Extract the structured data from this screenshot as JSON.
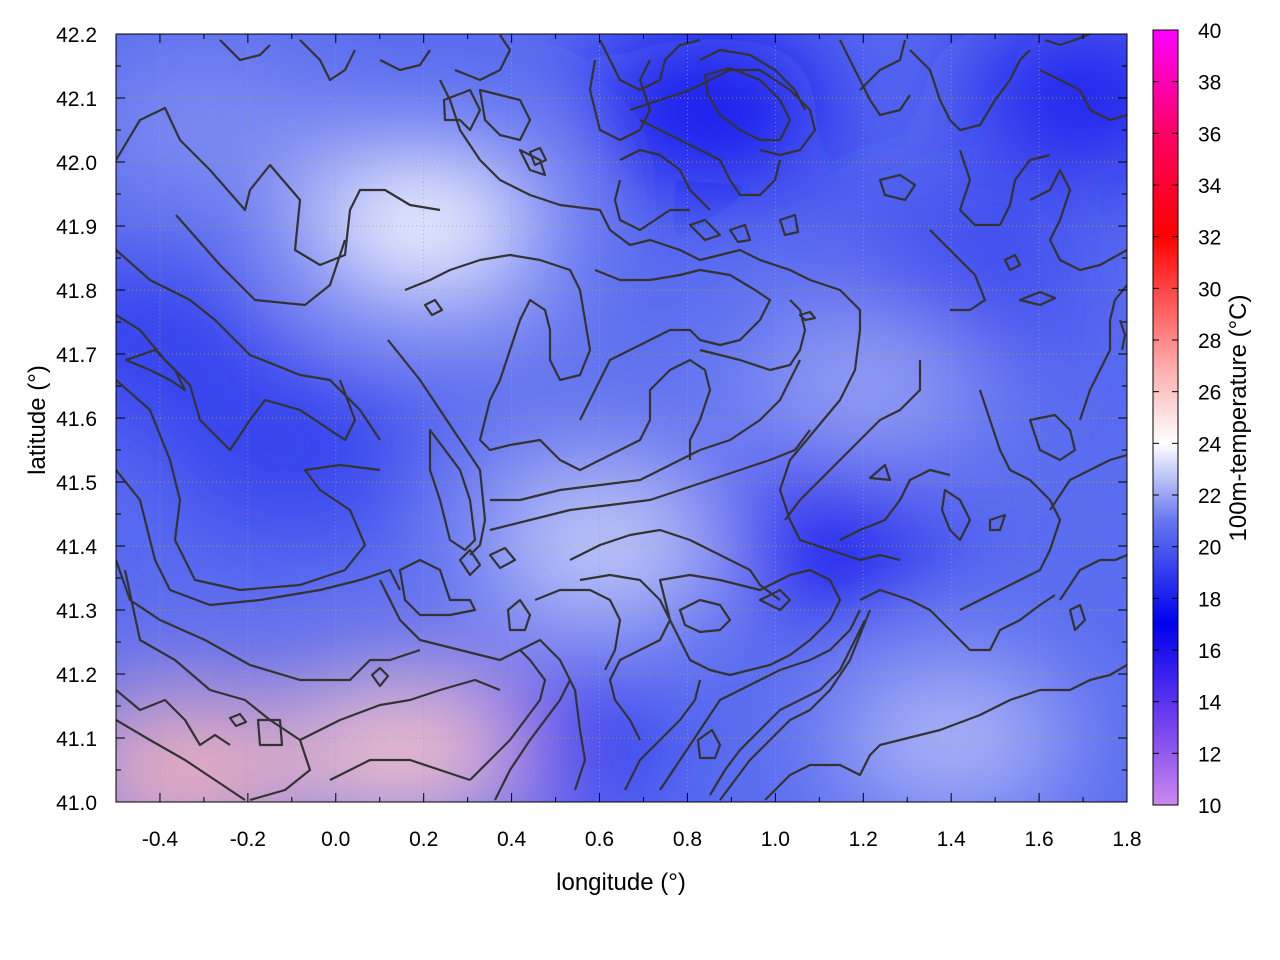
{
  "chart_data": {
    "type": "heatmap",
    "title": "",
    "xlabel": "longitude (°)",
    "ylabel": "latitude (°)",
    "colorbar_label": "100m-temperature (°C)",
    "xlim": [
      -0.5,
      1.8
    ],
    "ylim": [
      41.0,
      42.2
    ],
    "x_ticks": [
      -0.4,
      -0.2,
      0.0,
      0.2,
      0.4,
      0.6,
      0.8,
      1.0,
      1.2,
      1.4,
      1.6,
      1.8
    ],
    "x_tick_labels": [
      "-0.4",
      "-0.2",
      "0.0",
      "0.2",
      "0.4",
      "0.6",
      "0.8",
      "1.0",
      "1.2",
      "1.4",
      "1.6",
      "1.8"
    ],
    "y_ticks": [
      41.0,
      41.1,
      41.2,
      41.3,
      41.4,
      41.5,
      41.6,
      41.7,
      41.8,
      41.9,
      42.0,
      42.1,
      42.2
    ],
    "y_tick_labels": [
      "41.0",
      "41.1",
      "41.2",
      "41.3",
      "41.4",
      "41.5",
      "41.6",
      "41.7",
      "41.8",
      "41.9",
      "42.0",
      "42.1",
      "42.2"
    ],
    "colorbar_range": [
      10,
      40
    ],
    "colorbar_ticks": [
      10,
      12,
      14,
      16,
      18,
      20,
      22,
      24,
      26,
      28,
      30,
      32,
      34,
      36,
      38,
      40
    ],
    "colorbar_tick_labels": [
      "10",
      "12",
      "14",
      "16",
      "18",
      "20",
      "22",
      "24",
      "26",
      "28",
      "30",
      "32",
      "34",
      "36",
      "38",
      "40"
    ],
    "grid": true,
    "colormap": [
      {
        "value": 10,
        "color": "#cc88ee"
      },
      {
        "value": 13,
        "color": "#7744ee"
      },
      {
        "value": 17,
        "color": "#0000ee"
      },
      {
        "value": 21,
        "color": "#6677ee"
      },
      {
        "value": 24,
        "color": "#ffffff"
      },
      {
        "value": 27,
        "color": "#ffaaaa"
      },
      {
        "value": 32,
        "color": "#ff0000"
      },
      {
        "value": 36,
        "color": "#ff0066"
      },
      {
        "value": 40,
        "color": "#ff00ff"
      }
    ],
    "temperature_regions": [
      {
        "lon": 0.85,
        "lat": 42.08,
        "t": 16.5
      },
      {
        "lon": 1.1,
        "lat": 41.42,
        "t": 17.5
      },
      {
        "lon": -0.1,
        "lat": 41.55,
        "t": 19
      },
      {
        "lon": -0.45,
        "lat": 41.72,
        "t": 19
      },
      {
        "lon": 1.4,
        "lat": 41.8,
        "t": 19
      },
      {
        "lon": 1.7,
        "lat": 42.1,
        "t": 18
      },
      {
        "lon": 0.45,
        "lat": 41.1,
        "t": 18.5
      },
      {
        "lon": 0.2,
        "lat": 41.9,
        "t": 24
      },
      {
        "lon": 0.15,
        "lat": 41.08,
        "t": 26
      },
      {
        "lon": -0.35,
        "lat": 41.05,
        "t": 26.5
      },
      {
        "lon": 1.4,
        "lat": 41.1,
        "t": 22.5
      },
      {
        "lon": 0.6,
        "lat": 41.4,
        "t": 23
      },
      {
        "lon": 0.55,
        "lat": 41.6,
        "t": 21
      },
      {
        "lon": -0.3,
        "lat": 42.05,
        "t": 21.5
      },
      {
        "lon": 1.2,
        "lat": 41.65,
        "t": 22
      }
    ],
    "contour_color": "#333333"
  }
}
